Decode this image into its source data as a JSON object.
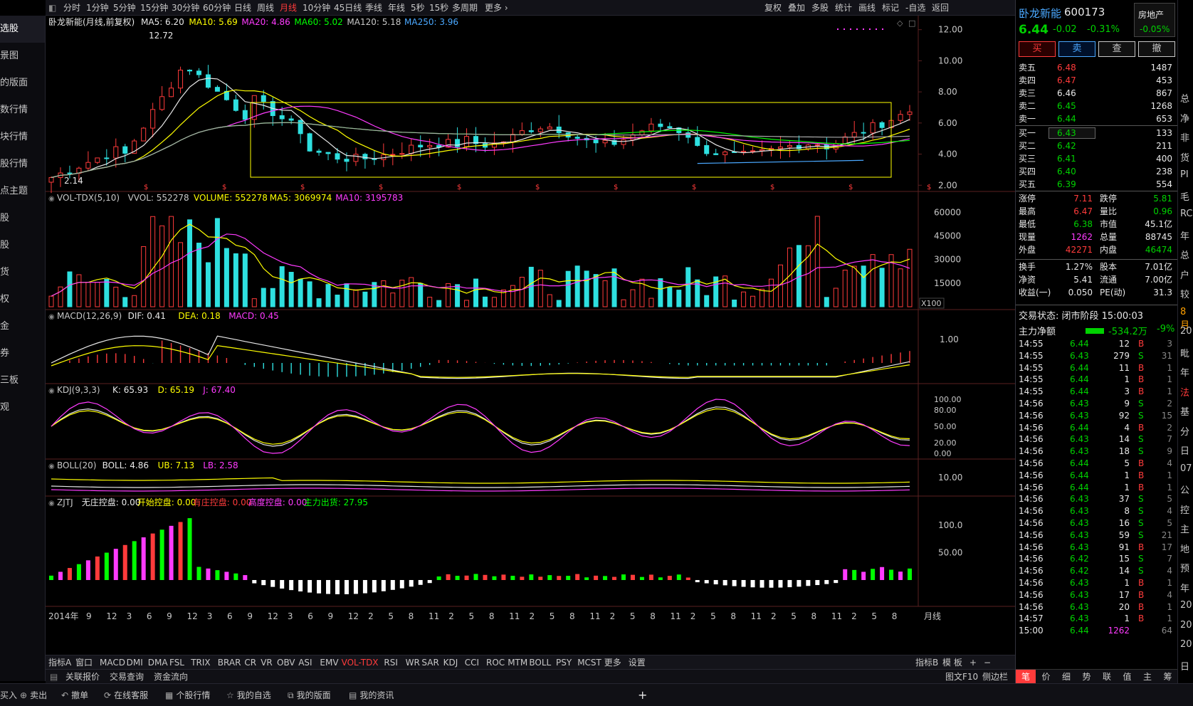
{
  "toolbar": {
    "periods": [
      "分时",
      "1分钟",
      "5分钟",
      "15分钟",
      "30分钟",
      "60分钟",
      "日线",
      "周线",
      "月线",
      "10分钟",
      "45日线",
      "季线",
      "年线",
      "5秒",
      "15秒",
      "多周期",
      "更多 ›"
    ],
    "active_period": "月线",
    "right_buttons": [
      "复权",
      "叠加",
      "多股",
      "统计",
      "画线",
      "标记",
      "-自选",
      "返回"
    ]
  },
  "left_nav": [
    "选股",
    "景图",
    "的版面",
    "数行情",
    "块行情",
    "股行情",
    "点主题",
    "股",
    "股",
    "货",
    "权",
    "金",
    "券",
    "三板",
    "观"
  ],
  "main_chart": {
    "legend_title": "卧龙新能(月线,前复权)",
    "ma": [
      {
        "label": "MA5: 6.20",
        "color": "#e8e8e8"
      },
      {
        "label": "MA10: 5.69",
        "color": "#ffff00"
      },
      {
        "label": "MA20: 4.86",
        "color": "#ff3bff"
      },
      {
        "label": "MA60: 5.02",
        "color": "#00ff00"
      },
      {
        "label": "MA120: 5.18",
        "color": "#c8c8c8"
      },
      {
        "label": "MA250: 3.96",
        "color": "#4aa8ff"
      }
    ],
    "y_ticks": [
      "12.00",
      "10.00",
      "8.00",
      "6.00",
      "4.00",
      "2.00"
    ],
    "high_label": "12.72",
    "low_label": "2.14"
  },
  "volume": {
    "legend": [
      {
        "label": "VOL-TDX(5,10)",
        "color": "#c8c8c8"
      },
      {
        "label": "VVOL: 552278",
        "color": "#c8c8c8"
      },
      {
        "label": "VOLUME: 552278",
        "color": "#ffff00"
      },
      {
        "label": "MA5: 3069974",
        "color": "#ffff00"
      },
      {
        "label": "MA10: 3195783",
        "color": "#ff3bff"
      }
    ],
    "y_ticks": [
      "60000",
      "45000",
      "30000",
      "15000"
    ],
    "unit": "X100"
  },
  "macd": {
    "legend": [
      {
        "label": "MACD(12,26,9)",
        "color": "#c8c8c8"
      },
      {
        "label": "DIF: 0.41",
        "color": "#e8e8e8"
      },
      {
        "label": "DEA: 0.18",
        "color": "#ffff00"
      },
      {
        "label": "MACD: 0.45",
        "color": "#ff3bff"
      }
    ],
    "y_ticks": [
      "1.00"
    ]
  },
  "kdj": {
    "legend": [
      {
        "label": "KDJ(9,3,3)",
        "color": "#c8c8c8"
      },
      {
        "label": "K: 65.93",
        "color": "#e8e8e8"
      },
      {
        "label": "D: 65.19",
        "color": "#ffff00"
      },
      {
        "label": "J: 67.40",
        "color": "#ff3bff"
      }
    ],
    "y_ticks": [
      "100.00",
      "80.00",
      "50.00",
      "20.00",
      "0.00"
    ]
  },
  "boll": {
    "legend": [
      {
        "label": "BOLL(20)",
        "color": "#c8c8c8"
      },
      {
        "label": "BOLL: 4.86",
        "color": "#e8e8e8"
      },
      {
        "label": "UB: 7.13",
        "color": "#ffff00"
      },
      {
        "label": "LB: 2.58",
        "color": "#ff3bff"
      }
    ],
    "y_ticks": [
      "10.00"
    ]
  },
  "zjtj": {
    "legend": [
      {
        "label": "ZJTJ",
        "color": "#c8c8c8"
      },
      {
        "label": "无庄控盘: 0.00",
        "color": "#e8e8e8"
      },
      {
        "label": "开始控盘: 0.00",
        "color": "#ffff00"
      },
      {
        "label": "有庄控盘: 0.00",
        "color": "#ff3b3b"
      },
      {
        "label": "高度控盘: 0.00",
        "color": "#ff3bff"
      },
      {
        "label": "主力出货: 27.95",
        "color": "#00ff00"
      }
    ],
    "y_ticks": [
      "100.0",
      "50.00"
    ]
  },
  "x_axis": {
    "labels": [
      "2014年",
      "9",
      "12",
      "3",
      "6",
      "9",
      "12",
      "3",
      "6",
      "9",
      "12",
      "3",
      "6",
      "9",
      "12",
      "2",
      "5",
      "8",
      "11",
      "2",
      "5",
      "8",
      "11",
      "2",
      "5",
      "8",
      "11",
      "2",
      "5",
      "8",
      "11",
      "2",
      "5",
      "8",
      "11",
      "2",
      "5",
      "8",
      "11",
      "2",
      "5",
      "8"
    ],
    "period_label": "月线"
  },
  "bottom_tabs": {
    "left": "指标A",
    "items": [
      "窗口",
      "MACD",
      "DMI",
      "DMA",
      "FSL",
      "TRIX",
      "BRAR",
      "CR",
      "VR",
      "OBV",
      "ASI",
      "EMV",
      "VOL-TDX",
      "RSI",
      "WR",
      "SAR",
      "KDJ",
      "CCI",
      "ROC",
      "MTM",
      "BOLL",
      "PSY",
      "MCST",
      "更多",
      "设置"
    ],
    "active": "VOL-TDX",
    "right": [
      "指标B",
      "模 板",
      "+",
      "−"
    ]
  },
  "sub_tabs": [
    "关联报价",
    "交易查询",
    "资金流向"
  ],
  "sub_right": [
    "图文F10",
    "侧边栏"
  ],
  "status_bar": [
    "买入",
    "卖出",
    "撤单",
    "在线客服",
    "个股行情",
    "我的自选",
    "我的版面",
    "我的资讯",
    "+"
  ],
  "stock": {
    "name": "卧龙新能",
    "code": "600173",
    "price": "6.44",
    "change": "-0.02",
    "pct": "-0.31%",
    "sector": "房地产",
    "sector_pct": "-0.05%"
  },
  "trade_buttons": [
    "买",
    "卖",
    "查",
    "撤"
  ],
  "order_book": {
    "sell": [
      {
        "label": "卖五",
        "price": "6.48",
        "vol": "1487",
        "color": "red"
      },
      {
        "label": "卖四",
        "price": "6.47",
        "vol": "453",
        "color": "red"
      },
      {
        "label": "卖三",
        "price": "6.46",
        "vol": "867",
        "color": "white"
      },
      {
        "label": "卖二",
        "price": "6.45",
        "vol": "1268",
        "color": "green"
      },
      {
        "label": "卖一",
        "price": "6.44",
        "vol": "653",
        "color": "green"
      }
    ],
    "buy": [
      {
        "label": "买一",
        "price": "6.43",
        "vol": "133",
        "color": "green"
      },
      {
        "label": "买二",
        "price": "6.42",
        "vol": "211",
        "color": "green"
      },
      {
        "label": "买三",
        "price": "6.41",
        "vol": "400",
        "color": "green"
      },
      {
        "label": "买四",
        "price": "6.40",
        "vol": "238",
        "color": "green"
      },
      {
        "label": "买五",
        "price": "6.39",
        "vol": "554",
        "color": "green"
      }
    ]
  },
  "stats": [
    {
      "l1": "涨停",
      "v1": "7.11",
      "c1": "red",
      "l2": "跌停",
      "v2": "5.81",
      "c2": "green"
    },
    {
      "l1": "最高",
      "v1": "6.47",
      "c1": "red",
      "l2": "量比",
      "v2": "0.96",
      "c2": "green"
    },
    {
      "l1": "最低",
      "v1": "6.38",
      "c1": "green",
      "l2": "市值",
      "v2": "45.1亿",
      "c2": "white"
    },
    {
      "l1": "现量",
      "v1": "1262",
      "c1": "mag",
      "l2": "总量",
      "v2": "88745",
      "c2": "white"
    },
    {
      "l1": "外盘",
      "v1": "42271",
      "c1": "red",
      "l2": "内盘",
      "v2": "46474",
      "c2": "green"
    },
    {
      "l1": "换手",
      "v1": "1.27%",
      "c1": "white",
      "l2": "股本",
      "v2": "7.01亿",
      "c2": "white"
    },
    {
      "l1": "净资",
      "v1": "5.41",
      "c1": "white",
      "l2": "流通",
      "v2": "7.00亿",
      "c2": "white"
    },
    {
      "l1": "收益(一)",
      "v1": "0.050",
      "c1": "white",
      "l2": "PE(动)",
      "v2": "31.3",
      "c2": "white"
    }
  ],
  "trade_status": "交易状态: 闭市阶段 15:00:03",
  "main_flow": {
    "label": "主力净额",
    "value": "-534.2万",
    "pct": "-9%"
  },
  "ticks": [
    {
      "t": "14:55",
      "p": "6.44",
      "v": "12",
      "s": "B",
      "n": "3",
      "pc": "green"
    },
    {
      "t": "14:55",
      "p": "6.43",
      "v": "279",
      "s": "S",
      "n": "31",
      "pc": "green"
    },
    {
      "t": "14:55",
      "p": "6.44",
      "v": "11",
      "s": "B",
      "n": "1",
      "pc": "green"
    },
    {
      "t": "14:55",
      "p": "6.44",
      "v": "1",
      "s": "B",
      "n": "1",
      "pc": "green"
    },
    {
      "t": "14:55",
      "p": "6.44",
      "v": "3",
      "s": "B",
      "n": "1",
      "pc": "green"
    },
    {
      "t": "14:56",
      "p": "6.43",
      "v": "9",
      "s": "S",
      "n": "2",
      "pc": "green"
    },
    {
      "t": "14:56",
      "p": "6.43",
      "v": "92",
      "s": "S",
      "n": "15",
      "pc": "green"
    },
    {
      "t": "14:56",
      "p": "6.44",
      "v": "4",
      "s": "B",
      "n": "2",
      "pc": "green"
    },
    {
      "t": "14:56",
      "p": "6.43",
      "v": "14",
      "s": "S",
      "n": "7",
      "pc": "green"
    },
    {
      "t": "14:56",
      "p": "6.43",
      "v": "18",
      "s": "S",
      "n": "9",
      "pc": "green"
    },
    {
      "t": "14:56",
      "p": "6.44",
      "v": "5",
      "s": "B",
      "n": "4",
      "pc": "green"
    },
    {
      "t": "14:56",
      "p": "6.44",
      "v": "1",
      "s": "B",
      "n": "1",
      "pc": "green"
    },
    {
      "t": "14:56",
      "p": "6.44",
      "v": "1",
      "s": "B",
      "n": "1",
      "pc": "green"
    },
    {
      "t": "14:56",
      "p": "6.43",
      "v": "37",
      "s": "S",
      "n": "5",
      "pc": "green"
    },
    {
      "t": "14:56",
      "p": "6.43",
      "v": "8",
      "s": "S",
      "n": "4",
      "pc": "green"
    },
    {
      "t": "14:56",
      "p": "6.43",
      "v": "16",
      "s": "S",
      "n": "5",
      "pc": "green"
    },
    {
      "t": "14:56",
      "p": "6.43",
      "v": "59",
      "s": "S",
      "n": "21",
      "pc": "green"
    },
    {
      "t": "14:56",
      "p": "6.43",
      "v": "91",
      "s": "B",
      "n": "17",
      "pc": "green"
    },
    {
      "t": "14:56",
      "p": "6.42",
      "v": "15",
      "s": "S",
      "n": "7",
      "pc": "green"
    },
    {
      "t": "14:56",
      "p": "6.42",
      "v": "14",
      "s": "S",
      "n": "4",
      "pc": "green"
    },
    {
      "t": "14:56",
      "p": "6.43",
      "v": "1",
      "s": "B",
      "n": "1",
      "pc": "green"
    },
    {
      "t": "14:56",
      "p": "6.43",
      "v": "17",
      "s": "B",
      "n": "4",
      "pc": "green"
    },
    {
      "t": "14:56",
      "p": "6.43",
      "v": "20",
      "s": "B",
      "n": "1",
      "pc": "green"
    },
    {
      "t": "14:57",
      "p": "6.43",
      "v": "1",
      "s": "B",
      "n": "1",
      "pc": "green"
    },
    {
      "t": "15:00",
      "p": "6.44",
      "v": "1262",
      "s": "",
      "n": "64",
      "pc": "green"
    }
  ],
  "panel_tabs": [
    "笔",
    "价",
    "细",
    "势",
    "联",
    "值",
    "主",
    "筹"
  ],
  "edge_text": [
    "总",
    "净",
    "非",
    "货",
    "PI",
    "毛",
    "RC",
    "年",
    "总",
    "户",
    "较",
    "8月",
    "20",
    "毗",
    "年",
    "法",
    "基",
    "分",
    "日",
    "07",
    "公",
    "控",
    "主",
    "地",
    "预",
    "年",
    "20",
    "20",
    "20",
    "日"
  ],
  "colors": {
    "up": "#ff3b3b",
    "down": "#2ee0e0",
    "bg": "#000000",
    "grid": "#3a1a1a"
  }
}
